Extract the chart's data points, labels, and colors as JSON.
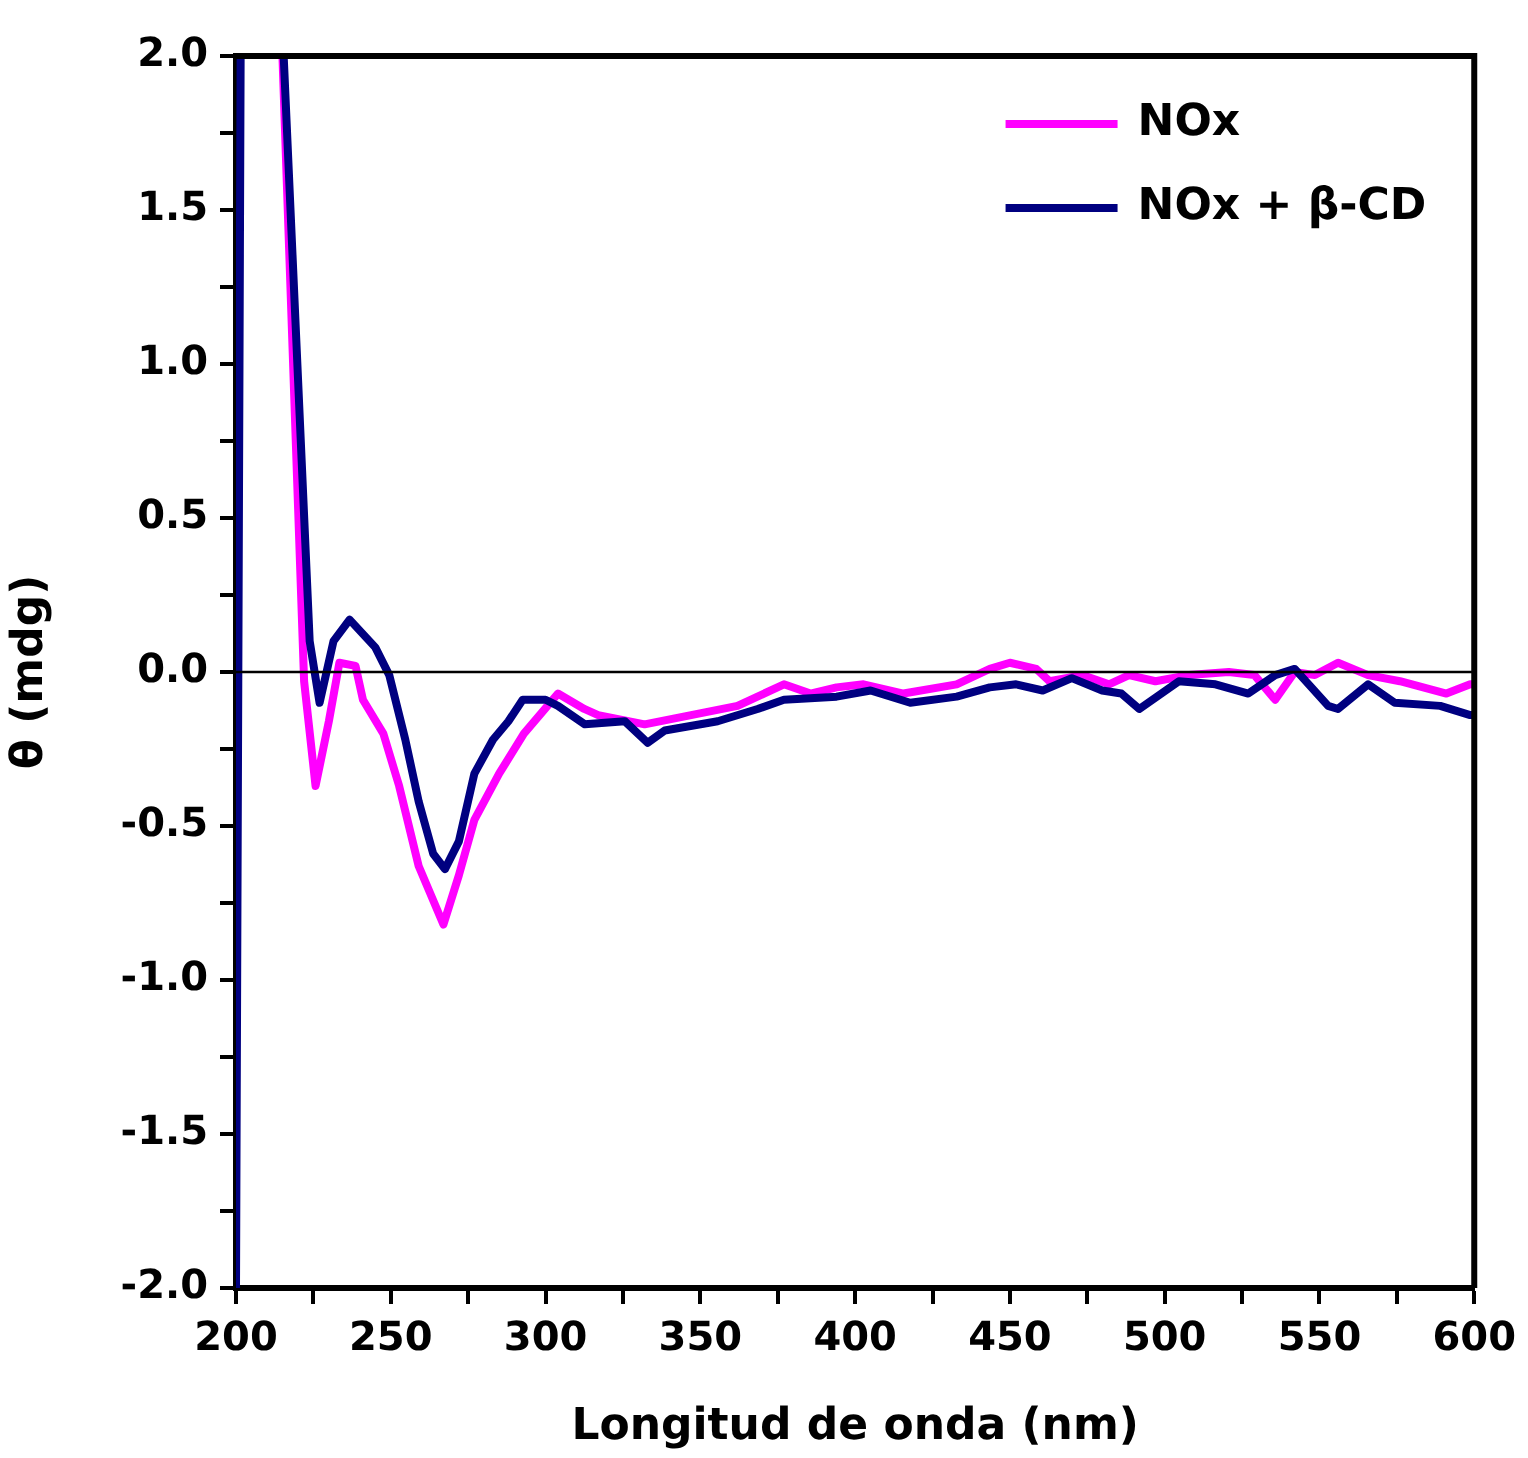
{
  "chart_data": {
    "type": "line",
    "xlabel": "Longitud de onda (nm)",
    "ylabel": "θ (mdg)",
    "xlim": [
      200,
      600
    ],
    "ylim": [
      -2.0,
      2.0
    ],
    "xticks": [
      200,
      {
        "value": 225,
        "label": null
      },
      250,
      {
        "value": 275,
        "label": null
      },
      300,
      {
        "value": 325,
        "label": null
      },
      350,
      {
        "value": 375,
        "label": null
      },
      400,
      {
        "value": 425,
        "label": null
      },
      450,
      {
        "value": 475,
        "label": null
      },
      500,
      {
        "value": 525,
        "label": null
      },
      550,
      {
        "value": 575,
        "label": null
      },
      600
    ],
    "yticks": [
      {
        "value": -2.0,
        "label": "-2.0"
      },
      {
        "value": -1.75,
        "label": null
      },
      {
        "value": -1.5,
        "label": "-1.5"
      },
      {
        "value": -1.25,
        "label": null
      },
      {
        "value": -1.0,
        "label": "-1.0"
      },
      {
        "value": -0.75,
        "label": null
      },
      {
        "value": -0.5,
        "label": "-0.5"
      },
      {
        "value": -0.25,
        "label": null
      },
      {
        "value": 0,
        "label": "0.0"
      },
      {
        "value": 0.25,
        "label": null
      },
      {
        "value": 0.5,
        "label": "0.5"
      },
      {
        "value": 0.75,
        "label": null
      },
      {
        "value": 1.0,
        "label": "1.0"
      },
      {
        "value": 1.25,
        "label": null
      },
      {
        "value": 1.5,
        "label": "1.5"
      },
      {
        "value": 1.75,
        "label": null
      },
      {
        "value": 2.0,
        "label": "2.0"
      }
    ],
    "grid": false,
    "legend": "top right",
    "marker": "none",
    "line_style": "solid",
    "ref_lines": [
      {
        "axis": "y",
        "value": 0,
        "color": "#000000"
      }
    ],
    "series": [
      {
        "name": "NOx",
        "color": "#ff00ff",
        "x": [
          215,
          222,
          225.7,
          230,
          233.4,
          238.6,
          241,
          247.6,
          252.7,
          259,
          267,
          272,
          277,
          285,
          293,
          304,
          312.5,
          317,
          332,
          347,
          362,
          377,
          385.6,
          394,
          402.7,
          415.6,
          432.8,
          443.5,
          450,
          458.5,
          462.8,
          473.4,
          482,
          488.5,
          497,
          507.8,
          520.7,
          529,
          535.7,
          542,
          548.5,
          556,
          565.7,
          576,
          591,
          598.7,
          600
        ],
        "values": [
          2.0,
          -0.03,
          -0.37,
          -0.16,
          0.03,
          0.02,
          -0.09,
          -0.2,
          -0.37,
          -0.63,
          -0.82,
          -0.66,
          -0.48,
          -0.33,
          -0.2,
          -0.07,
          -0.12,
          -0.14,
          -0.17,
          -0.14,
          -0.11,
          -0.04,
          -0.07,
          -0.05,
          -0.04,
          -0.07,
          -0.04,
          0.01,
          0.03,
          0.01,
          -0.03,
          -0.01,
          -0.04,
          -0.01,
          -0.03,
          -0.01,
          0.0,
          -0.01,
          -0.09,
          0.0,
          -0.01,
          0.03,
          -0.01,
          -0.03,
          -0.07,
          -0.04,
          -0.04
        ]
      },
      {
        "name": "NOx + β-CD",
        "color": "#000080",
        "x": [
          200,
          201.5,
          208,
          215.4,
          223.8,
          227,
          231.5,
          236.7,
          245,
          249.5,
          254.7,
          259,
          263.7,
          267.5,
          272,
          277,
          283,
          288,
          292.6,
          300,
          304,
          312.7,
          325.6,
          333,
          338.5,
          355.6,
          368.5,
          377,
          394,
          405,
          417.8,
          432.8,
          443.5,
          452,
          460.6,
          470,
          479.8,
          486,
          491.8,
          504.6,
          516.4,
          527,
          535.7,
          542,
          552.8,
          556,
          565.7,
          574.3,
          589,
          598.7,
          600
        ],
        "values": [
          -2.0,
          2.0,
          null,
          2.0,
          0.1,
          -0.1,
          0.1,
          0.17,
          0.08,
          -0.01,
          -0.22,
          -0.42,
          -0.59,
          -0.64,
          -0.55,
          -0.33,
          -0.22,
          -0.16,
          -0.09,
          -0.09,
          -0.11,
          -0.17,
          -0.16,
          -0.23,
          -0.19,
          -0.16,
          -0.12,
          -0.09,
          -0.08,
          -0.06,
          -0.1,
          -0.08,
          -0.05,
          -0.04,
          -0.06,
          -0.02,
          -0.06,
          -0.07,
          -0.12,
          -0.03,
          -0.04,
          -0.07,
          -0.01,
          0.01,
          -0.11,
          -0.12,
          -0.04,
          -0.1,
          -0.11,
          -0.14,
          -0.14
        ]
      }
    ]
  }
}
